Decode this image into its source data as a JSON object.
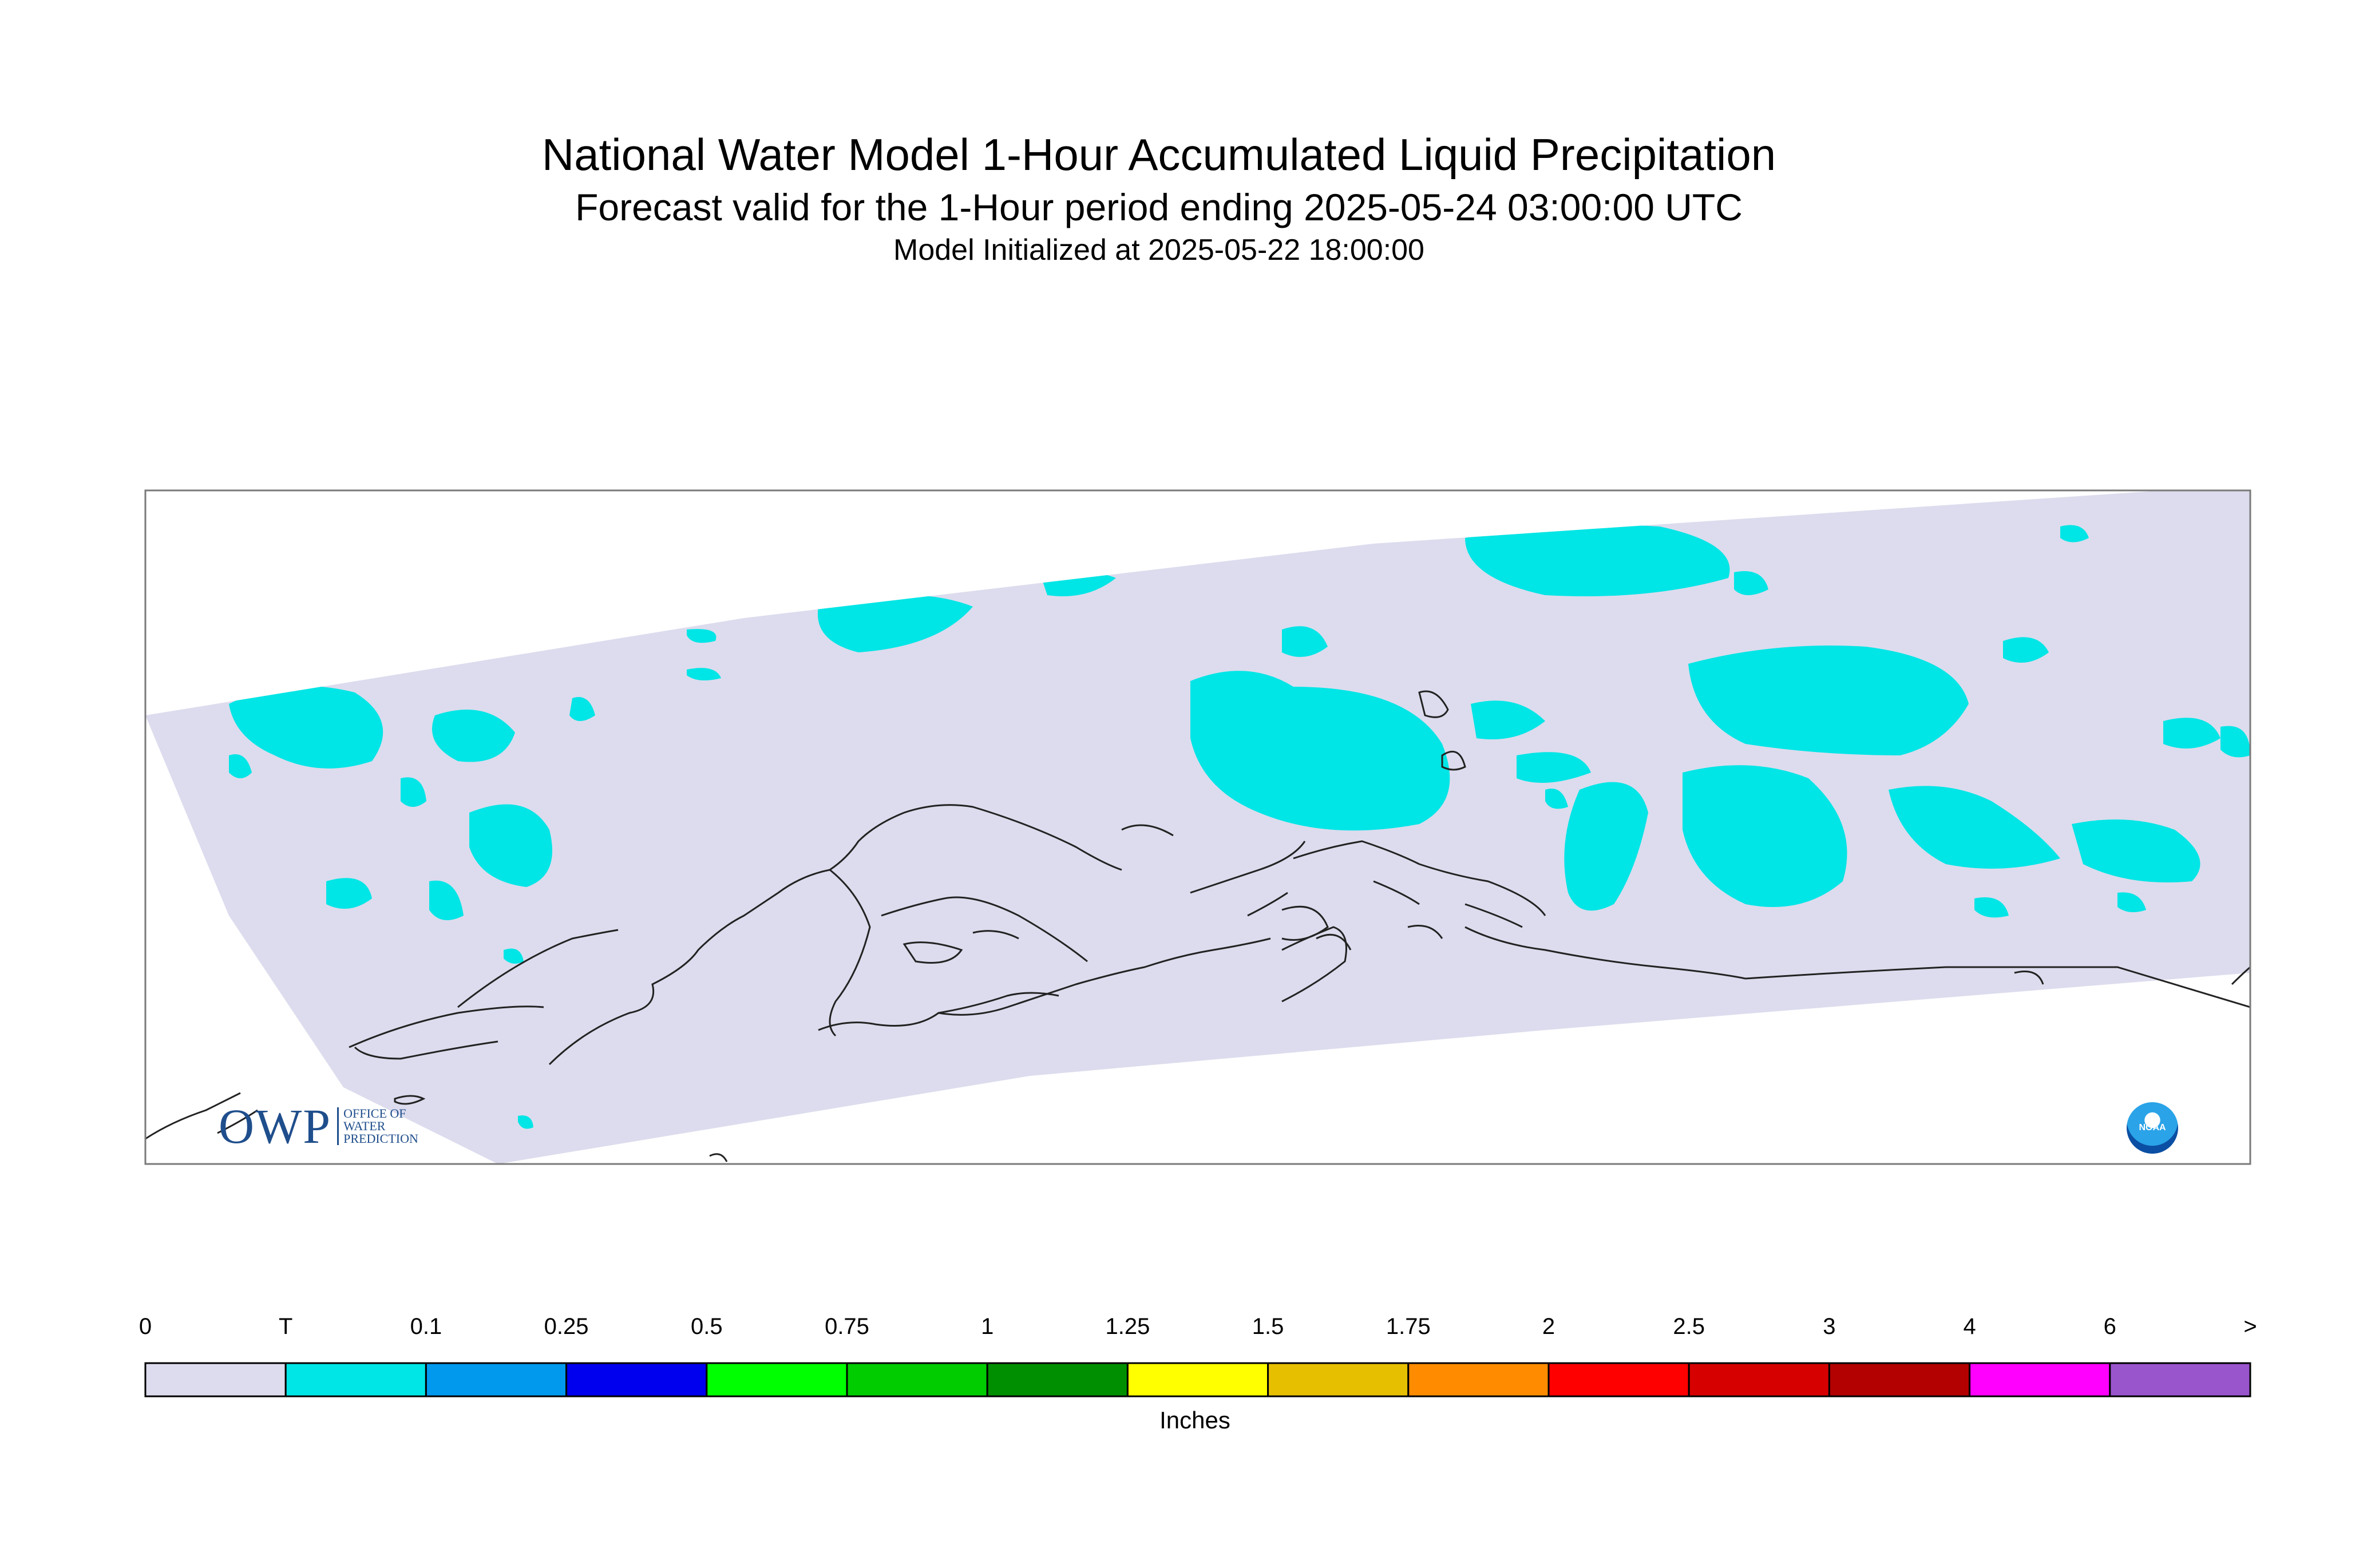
{
  "title": {
    "line1": "National Water Model 1-Hour Accumulated Liquid Precipitation",
    "line2": "Forecast valid for the 1-Hour period ending 2025-05-24 03:00:00 UTC",
    "line3": "Model Initialized at 2025-05-22 18:00:00"
  },
  "map": {
    "domain_fill_color": "#dcdcee",
    "precip_color": "#00e5e5",
    "coastline_color": "#222222",
    "predominant_category": "T (trace) to 0.1 in"
  },
  "logos": {
    "owp_letters": "OWP",
    "owp_line1": "OFFICE OF",
    "owp_line2": "WATER",
    "owp_line3": "PREDICTION",
    "noaa_text": "NOAA"
  },
  "colorbar": {
    "units": "Inches",
    "labels": [
      "0",
      "T",
      "0.1",
      "0.25",
      "0.5",
      "0.75",
      "1",
      "1.25",
      "1.5",
      "1.75",
      "2",
      "2.5",
      "3",
      "4",
      "6",
      ">"
    ],
    "colors": [
      "#dcdcee",
      "#00e5e5",
      "#0099ee",
      "#0000ee",
      "#00ff00",
      "#00cc00",
      "#008f00",
      "#ffff00",
      "#e6bf00",
      "#ff8c00",
      "#ff0000",
      "#d70000",
      "#b30000",
      "#ff00ff",
      "#9955cc"
    ]
  }
}
